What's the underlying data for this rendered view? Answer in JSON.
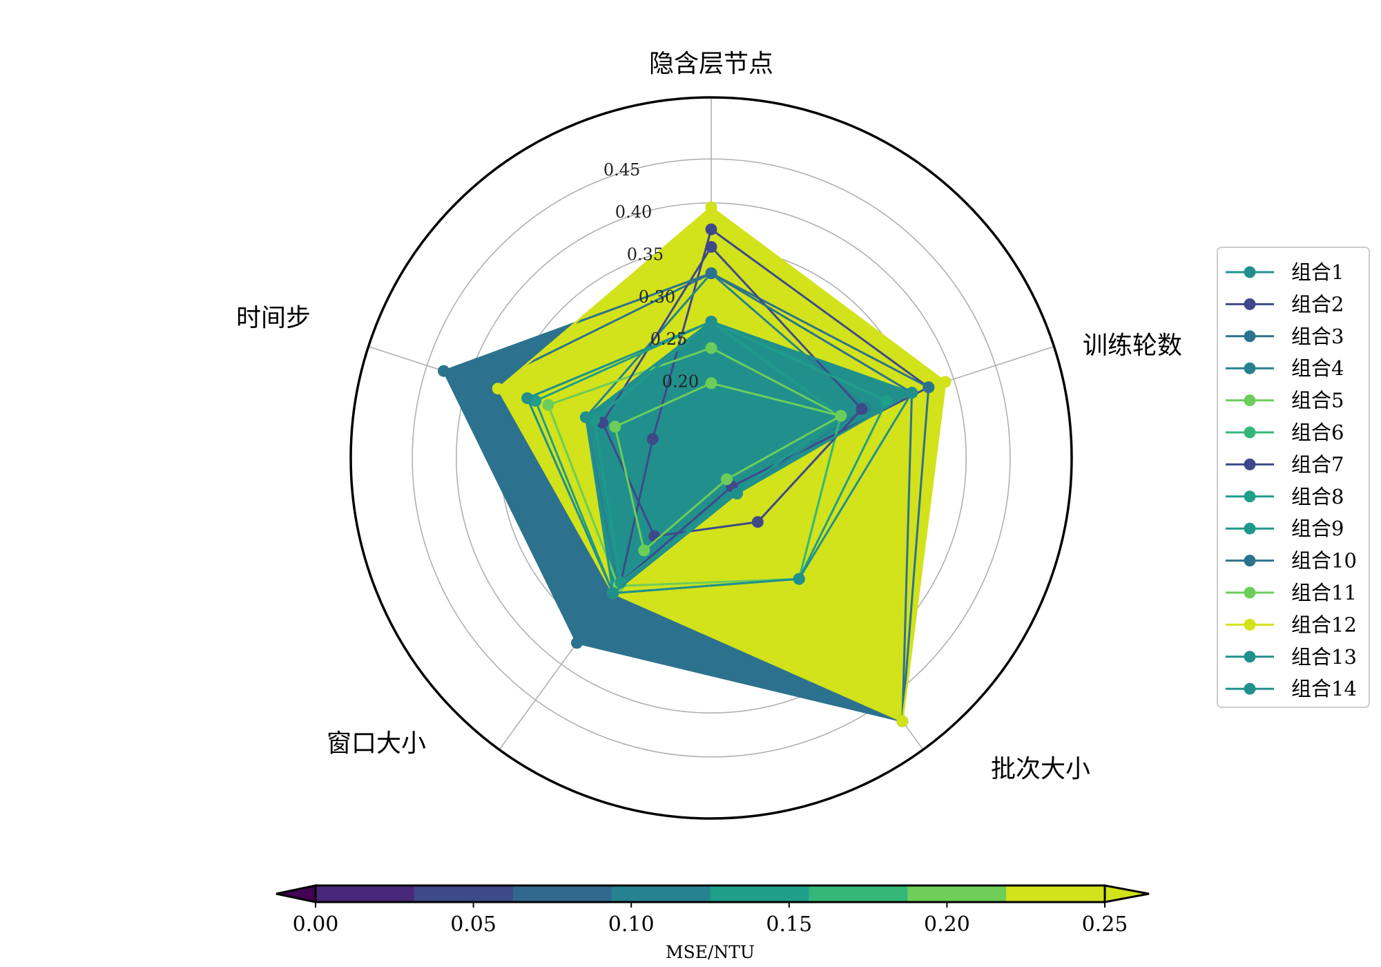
{
  "chart_data": {
    "type": "radar",
    "axes": [
      "隐含层节点",
      "训练轮数",
      "批次大小",
      "窗口大小",
      "时间步"
    ],
    "radial_ticks": [
      "0.20",
      "0.25",
      "0.30",
      "0.35",
      "0.40",
      "0.45"
    ],
    "rlim": [
      0.11,
      0.52
    ],
    "grid": true,
    "legend_position": "right",
    "series": [
      {
        "name": "组合1",
        "values": [
          0.265,
          0.235,
          0.16,
          0.285,
          0.213
        ],
        "color": "#21908d"
      },
      {
        "name": "组合2",
        "values": [
          0.37,
          0.37,
          0.15,
          0.285,
          0.18
        ],
        "color": "#3e4989"
      },
      {
        "name": "组合3",
        "values": [
          0.32,
          0.37,
          0.48,
          0.315,
          0.38
        ],
        "color": "#2c728e"
      },
      {
        "name": "组合4",
        "values": [
          0.32,
          0.295,
          0.16,
          0.29,
          0.26
        ],
        "color": "#26828e"
      },
      {
        "name": "组合5",
        "values": [
          0.235,
          0.265,
          0.28,
          0.29,
          0.305
        ],
        "color": "#6ccd5a"
      },
      {
        "name": "组合6",
        "values": [
          0.265,
          0.265,
          0.28,
          0.3,
          0.33
        ],
        "color": "#35b779"
      },
      {
        "name": "组合7",
        "values": [
          0.35,
          0.29,
          0.2,
          0.22,
          0.24
        ],
        "color": "#3e4989"
      },
      {
        "name": "组合8",
        "values": [
          0.265,
          0.32,
          0.28,
          0.3,
          0.32
        ],
        "color": "#1f9e89"
      },
      {
        "name": "组合9",
        "values": [
          0.265,
          0.265,
          0.16,
          0.285,
          0.25
        ],
        "color": "#1f998a"
      },
      {
        "name": "组合10",
        "values": [
          0.32,
          0.35,
          0.48,
          0.37,
          0.43
        ],
        "color": "#2c728e"
      },
      {
        "name": "组合11",
        "values": [
          0.195,
          0.265,
          0.14,
          0.24,
          0.225
        ],
        "color": "#6ccd5a"
      },
      {
        "name": "组合12",
        "values": [
          0.395,
          0.39,
          0.48,
          0.3,
          0.365
        ],
        "color": "#d2e21b"
      },
      {
        "name": "组合13",
        "values": [
          0.265,
          0.35,
          0.28,
          0.3,
          0.33
        ],
        "color": "#21908d"
      },
      {
        "name": "组合14",
        "values": [
          0.265,
          0.35,
          0.16,
          0.3,
          0.26
        ],
        "color": "#21908d"
      }
    ],
    "fills": [
      {
        "values": [
          0.32,
          0.35,
          0.48,
          0.37,
          0.43
        ],
        "color": "#2c728e"
      },
      {
        "values": [
          0.395,
          0.39,
          0.48,
          0.3,
          0.365
        ],
        "color": "#d2e21b"
      },
      {
        "values": [
          0.265,
          0.35,
          0.16,
          0.3,
          0.26
        ],
        "color": "#21908d"
      }
    ],
    "colorbar": {
      "label": "MSE/NTU",
      "ticks": [
        "0.00",
        "0.05",
        "0.10",
        "0.15",
        "0.20",
        "0.25"
      ],
      "range": [
        0.0,
        0.25
      ],
      "colors": [
        "#482878",
        "#3e4989",
        "#31688e",
        "#26828e",
        "#1f9e89",
        "#35b779",
        "#6ece58",
        "#d2e21b"
      ],
      "extend_low_color": "#440154",
      "extend_high_color": "#d2e21b"
    }
  }
}
